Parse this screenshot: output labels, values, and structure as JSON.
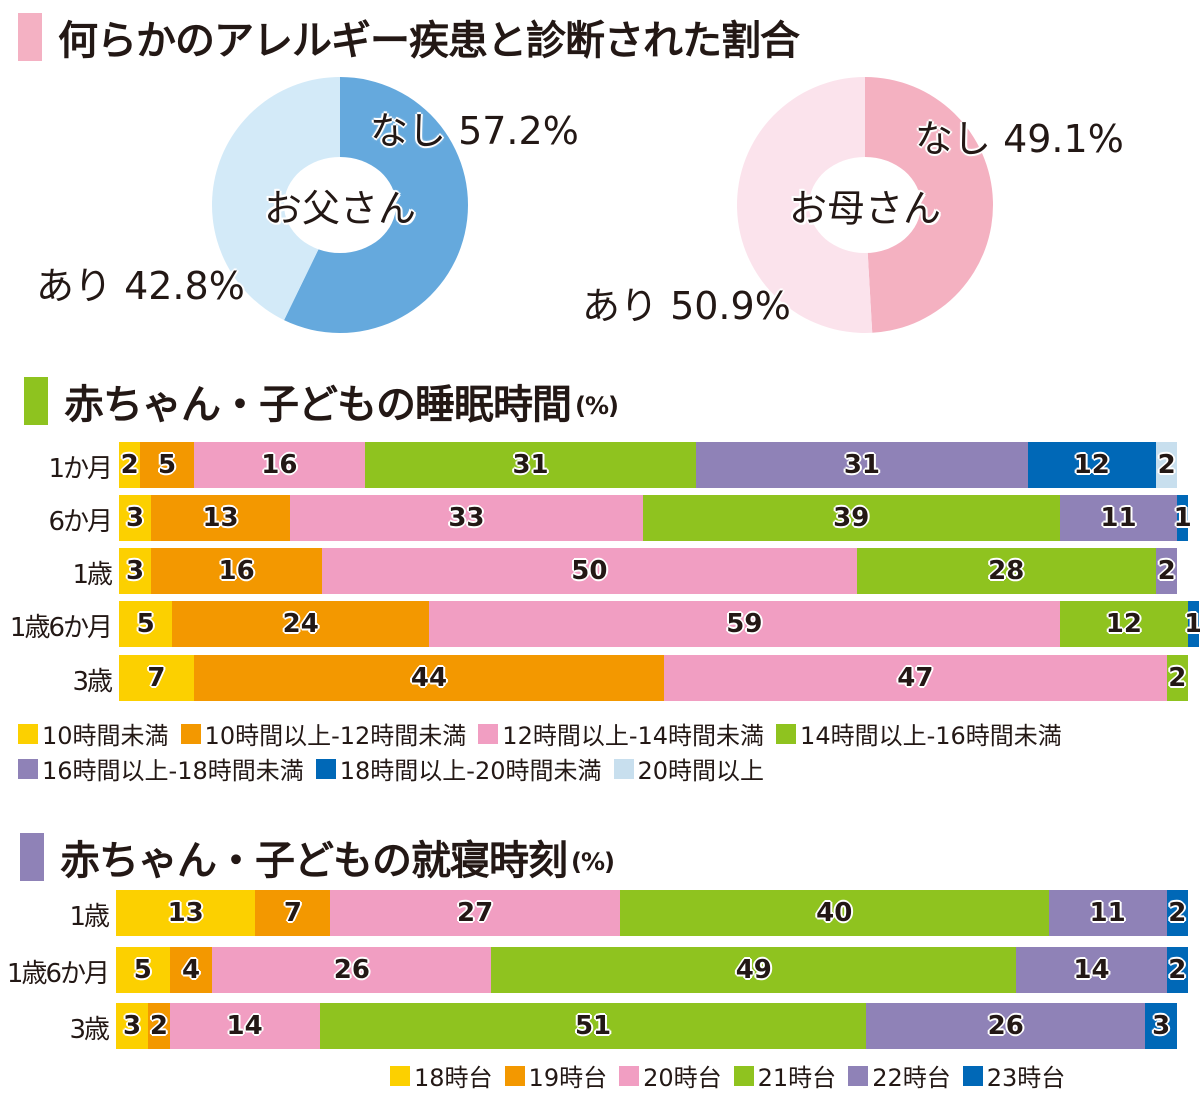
{
  "allergy": {
    "title": "何らかのアレルギー疾患と診断された割合",
    "title_color": "#f4b1c3",
    "father": {
      "center": "お父さん",
      "none_label": "なし 57.2%",
      "yes_label": "あり 42.8%",
      "none_color": "#65a9dd",
      "yes_color": "#d3eaf8"
    },
    "mother": {
      "center": "お母さん",
      "none_label": "なし 49.1%",
      "yes_label": "あり 50.9%",
      "none_color": "#f4b1c1",
      "yes_color": "#fbe3ec"
    }
  },
  "sleep": {
    "title": "赤ちゃん・子どもの睡眠時間",
    "unit": "(%)",
    "title_color": "#8ec31f"
  },
  "bedtime": {
    "title": "赤ちゃん・子どもの就寝時刻",
    "unit": "(%)",
    "title_color": "#8f82b7"
  },
  "chart_data": [
    {
      "type": "pie",
      "title": "お父さん",
      "categories": [
        "なし",
        "あり"
      ],
      "values": [
        57.2,
        42.8
      ],
      "colors": [
        "#65a9dd",
        "#d3eaf8"
      ]
    },
    {
      "type": "pie",
      "title": "お母さん",
      "categories": [
        "なし",
        "あり"
      ],
      "values": [
        49.1,
        50.9
      ],
      "colors": [
        "#f4b1c1",
        "#fbe3ec"
      ]
    },
    {
      "type": "bar",
      "stacked": true,
      "orientation": "horizontal",
      "title": "赤ちゃん・子どもの睡眠時間(%)",
      "categories": [
        "1か月",
        "6か月",
        "1歳",
        "1歳6か月",
        "3歳"
      ],
      "legend_position": "bottom",
      "series": [
        {
          "name": "10時間未満",
          "color": "#fcd000",
          "values": [
            2,
            3,
            3,
            5,
            7
          ]
        },
        {
          "name": "10時間以上-12時間未満",
          "color": "#f39800",
          "values": [
            5,
            13,
            16,
            24,
            44
          ]
        },
        {
          "name": "12時間以上-14時間未満",
          "color": "#f19ec2",
          "values": [
            16,
            33,
            50,
            59,
            47
          ]
        },
        {
          "name": "14時間以上-16時間未満",
          "color": "#8fc31f",
          "values": [
            31,
            39,
            28,
            12,
            2
          ]
        },
        {
          "name": "16時間以上-18時間未満",
          "color": "#8f82b7",
          "values": [
            31,
            11,
            2,
            0,
            0
          ]
        },
        {
          "name": "18時間以上-20時間未満",
          "color": "#0068b7",
          "values": [
            12,
            1,
            0,
            1,
            0
          ]
        },
        {
          "name": "20時間以上",
          "color": "#c8dfee",
          "values": [
            2,
            0,
            0,
            0,
            0
          ]
        }
      ],
      "xlim": [
        0,
        100
      ]
    },
    {
      "type": "bar",
      "stacked": true,
      "orientation": "horizontal",
      "title": "赤ちゃん・子どもの就寝時刻(%)",
      "categories": [
        "1歳",
        "1歳6か月",
        "3歳"
      ],
      "legend_position": "bottom-right",
      "series": [
        {
          "name": "18時台",
          "color": "#fcd000",
          "values": [
            13,
            5,
            3
          ]
        },
        {
          "name": "19時台",
          "color": "#f39800",
          "values": [
            7,
            4,
            2
          ]
        },
        {
          "name": "20時台",
          "color": "#f19ec2",
          "values": [
            27,
            26,
            14
          ]
        },
        {
          "name": "21時台",
          "color": "#8fc31f",
          "values": [
            40,
            49,
            51
          ]
        },
        {
          "name": "22時台",
          "color": "#8f82b7",
          "values": [
            11,
            14,
            26
          ]
        },
        {
          "name": "23時台",
          "color": "#0068b7",
          "values": [
            2,
            2,
            3
          ]
        }
      ],
      "xlim": [
        0,
        100
      ]
    }
  ]
}
